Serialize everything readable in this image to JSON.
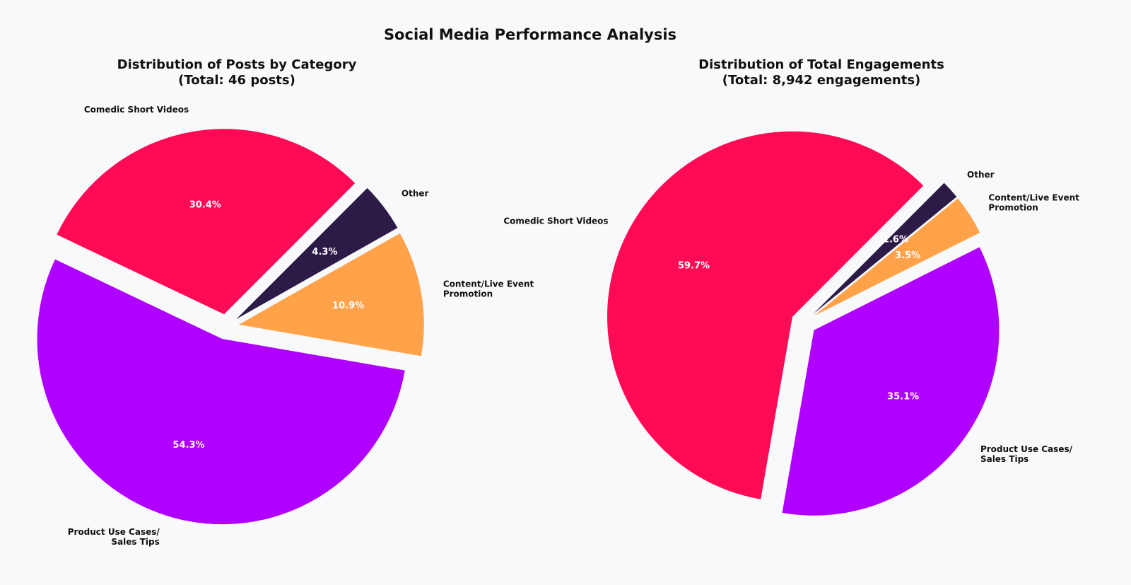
{
  "title": "Social Media Performance Analysis",
  "colors": {
    "Comedic Short Videos": "#ff0a54",
    "Other": "#2d1b47",
    "Content/Live Event Promotion": "#ffa24a",
    "Product Use Cases/ Sales Tips": "#b000ff"
  },
  "chart_data": [
    {
      "type": "pie",
      "title": [
        "Distribution of Posts by Category",
        "(Total: 46 posts)"
      ],
      "start_angle_deg": 45,
      "direction": "counterclockwise",
      "slices": [
        {
          "label": "Comedic Short Videos",
          "label_lines": [
            "Comedic Short Videos"
          ],
          "value": 30.4,
          "display": "30.4%"
        },
        {
          "label": "Product Use Cases/ Sales Tips",
          "label_lines": [
            "Product Use Cases/",
            "Sales Tips"
          ],
          "value": 54.3,
          "display": "54.3%"
        },
        {
          "label": "Content/Live Event Promotion",
          "label_lines": [
            "Content/Live Event",
            "Promotion"
          ],
          "value": 10.9,
          "display": "10.9%"
        },
        {
          "label": "Other",
          "label_lines": [
            "Other"
          ],
          "value": 4.3,
          "display": "4.3%"
        }
      ]
    },
    {
      "type": "pie",
      "title": [
        "Distribution of Total Engagements",
        "(Total: 8,942 engagements)"
      ],
      "start_angle_deg": 45,
      "direction": "counterclockwise",
      "slices": [
        {
          "label": "Comedic Short Videos",
          "label_lines": [
            "Comedic Short Videos"
          ],
          "value": 59.7,
          "display": "59.7%"
        },
        {
          "label": "Product Use Cases/ Sales Tips",
          "label_lines": [
            "Product Use Cases/",
            "Sales Tips"
          ],
          "value": 35.1,
          "display": "35.1%"
        },
        {
          "label": "Content/Live Event Promotion",
          "label_lines": [
            "Content/Live Event",
            "Promotion"
          ],
          "value": 3.5,
          "display": "3.5%"
        },
        {
          "label": "Other",
          "label_lines": [
            "Other"
          ],
          "value": 1.6,
          "display": "1.6%"
        }
      ]
    }
  ]
}
